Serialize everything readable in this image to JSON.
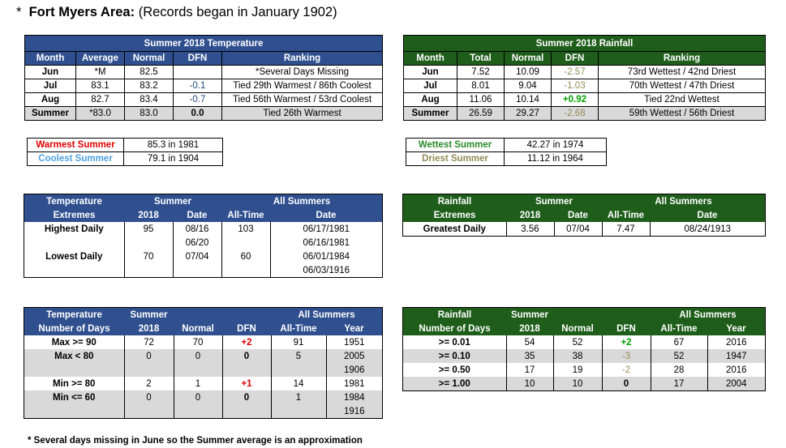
{
  "title": {
    "bullet": "*",
    "bold": "Fort Myers Area:",
    "rest": "(Records began in January 1902)"
  },
  "temp_summary": {
    "header": "Summer 2018 Temperature",
    "columns": [
      "Month",
      "Average",
      "Normal",
      "DFN",
      "Ranking"
    ],
    "rows": [
      {
        "month": "Jun",
        "average": "*M",
        "normal": "82.5",
        "dfn": "",
        "ranking": "*Several Days Missing"
      },
      {
        "month": "Jul",
        "average": "83.1",
        "normal": "83.2",
        "dfn": "-0.1",
        "ranking": "Tied 29th Warmest / 86th Coolest"
      },
      {
        "month": "Aug",
        "average": "82.7",
        "normal": "83.4",
        "dfn": "-0.7",
        "ranking": "Tied 56th Warmest / 53rd Coolest"
      },
      {
        "month": "Summer",
        "average": "*83.0",
        "normal": "83.0",
        "dfn": "0.0",
        "ranking": "Tied 26th Warmest"
      }
    ]
  },
  "rain_summary": {
    "header": "Summer 2018 Rainfall",
    "columns": [
      "Month",
      "Total",
      "Normal",
      "DFN",
      "Ranking"
    ],
    "rows": [
      {
        "month": "Jun",
        "total": "7.52",
        "normal": "10.09",
        "dfn": "-2.57",
        "ranking": "73rd Wettest / 42nd Driest"
      },
      {
        "month": "Jul",
        "total": "8.01",
        "normal": "9.04",
        "dfn": "-1.03",
        "ranking": "70th Wettest / 47th Driest"
      },
      {
        "month": "Aug",
        "total": "11.06",
        "normal": "10.14",
        "dfn": "+0.92",
        "ranking": "Tied 22nd Wettest"
      },
      {
        "month": "Summer",
        "total": "26.59",
        "normal": "29.27",
        "dfn": "-2.68",
        "ranking": "59th Wettest / 56th Driest"
      }
    ]
  },
  "temp_records": [
    {
      "label": "Warmest Summer",
      "value": "85.3 in 1981"
    },
    {
      "label": "Coolest Summer",
      "value": "79.1 in 1904"
    }
  ],
  "rain_records": [
    {
      "label": "Wettest Summer",
      "value": "42.27 in 1974"
    },
    {
      "label": "Driest Summer",
      "value": "11.12 in 1964"
    }
  ],
  "temp_extremes": {
    "h1": "Temperature",
    "h2": "Extremes",
    "summer": "Summer",
    "year": "2018",
    "date": "Date",
    "all_summers": "All Summers",
    "all_time": "All-Time",
    "all_date": "Date",
    "highest_label": "Highest Daily",
    "highest_2018": "95",
    "highest_dates": [
      "08/16",
      "06/20"
    ],
    "highest_alltime": "103",
    "highest_alldates": [
      "06/17/1981",
      "06/16/1981"
    ],
    "lowest_label": "Lowest Daily",
    "lowest_2018": "70",
    "lowest_date": "07/04",
    "lowest_alltime": "60",
    "lowest_alldates": [
      "06/01/1984",
      "06/03/1916"
    ]
  },
  "rain_extremes": {
    "h1": "Rainfall",
    "h2": "Extremes",
    "summer": "Summer",
    "year": "2018",
    "date": "Date",
    "all_summers": "All Summers",
    "all_time": "All-Time",
    "all_date": "Date",
    "label": "Greatest Daily",
    "v2018": "3.56",
    "date2018": "07/04",
    "alltime": "7.47",
    "alldate": "08/24/1913"
  },
  "temp_days": {
    "h1": "Temperature",
    "h2": "Number of Days",
    "summer": "Summer",
    "year": "2018",
    "normal": "Normal",
    "dfn": "DFN",
    "all_summers": "All Summers",
    "all_time": "All-Time",
    "yr": "Year",
    "rows": [
      {
        "label": "Max >= 90",
        "v2018": "72",
        "normal": "70",
        "dfn": "+2",
        "alltime": "91",
        "years": [
          "1951"
        ]
      },
      {
        "label": "Max < 80",
        "v2018": "0",
        "normal": "0",
        "dfn": "0",
        "alltime": "5",
        "years": [
          "2005",
          "1906"
        ]
      },
      {
        "label": "Min >= 80",
        "v2018": "2",
        "normal": "1",
        "dfn": "+1",
        "alltime": "14",
        "years": [
          "1981"
        ]
      },
      {
        "label": "Min <= 60",
        "v2018": "0",
        "normal": "0",
        "dfn": "0",
        "alltime": "1",
        "years": [
          "1984",
          "1916"
        ]
      }
    ]
  },
  "rain_days": {
    "h1": "Rainfall",
    "h2": "Number of Days",
    "summer": "Summer",
    "year": "2018",
    "normal": "Normal",
    "dfn": "DFN",
    "all_summers": "All Summers",
    "all_time": "All-Time",
    "yr": "Year",
    "rows": [
      {
        "label": ">= 0.01",
        "v2018": "54",
        "normal": "52",
        "dfn": "+2",
        "alltime": "67",
        "year": "2016"
      },
      {
        "label": ">= 0.10",
        "v2018": "35",
        "normal": "38",
        "dfn": "-3",
        "alltime": "52",
        "year": "1947"
      },
      {
        "label": ">= 0.50",
        "v2018": "17",
        "normal": "19",
        "dfn": "-2",
        "alltime": "28",
        "year": "2016"
      },
      {
        "label": ">= 1.00",
        "v2018": "10",
        "normal": "10",
        "dfn": "0",
        "alltime": "17",
        "year": "2004"
      }
    ]
  },
  "footnote": "* Several days missing in June so the Summer average is an approximation"
}
